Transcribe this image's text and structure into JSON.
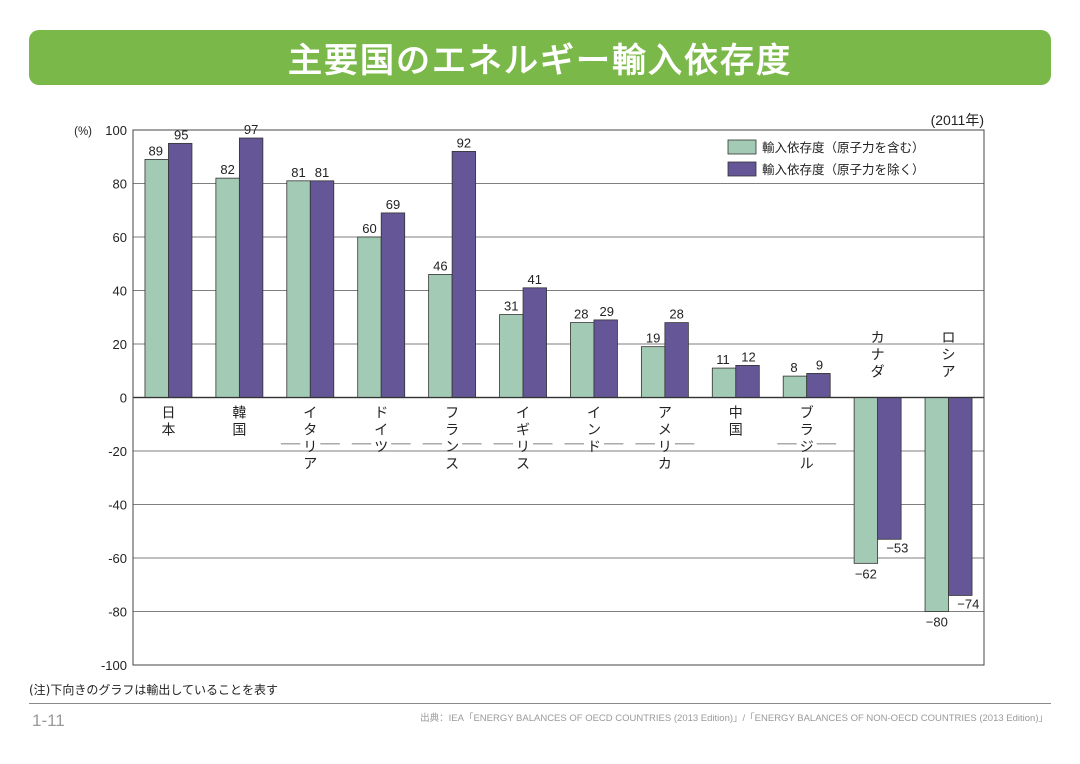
{
  "title": "主要国のエネルギー輸入依存度",
  "year_label": "(2011年)",
  "note": "(注)下向きのグラフは輸出していることを表す",
  "page_number": "1-11",
  "source": "出典：IEA「ENERGY BALANCES OF OECD COUNTRIES (2013 Edition)」/「ENERGY BALANCES OF NON-OECD COUNTRIES (2013 Edition)」",
  "chart_data": {
    "type": "bar",
    "unit_label": "(%)",
    "ylim": [
      -100,
      100
    ],
    "yticks": [
      100,
      80,
      60,
      40,
      20,
      0,
      -20,
      -40,
      -60,
      -80,
      -100
    ],
    "ytick_labels": [
      "100",
      "80",
      "60",
      "40",
      "20",
      "0",
      "-20",
      "-40",
      "-60",
      "-80",
      "-100"
    ],
    "grid": true,
    "legend_position": "top-right",
    "categories": [
      "日本",
      "韓国",
      "イタリア",
      "ドイツ",
      "フランス",
      "イギリス",
      "インド",
      "アメリカ",
      "中国",
      "ブラジル",
      "カナダ",
      "ロシア"
    ],
    "series": [
      {
        "name": "輸入依存度（原子力を含む）",
        "color": "#a3cab4",
        "values": [
          89,
          82,
          81,
          60,
          46,
          31,
          28,
          19,
          11,
          8,
          -62,
          -80
        ],
        "labels": [
          "89",
          "82",
          "81",
          "60",
          "46",
          "31",
          "28",
          "19",
          "11",
          "8",
          "−62",
          "−80"
        ]
      },
      {
        "name": "輸入依存度（原子力を除く）",
        "color": "#655797",
        "values": [
          95,
          97,
          81,
          69,
          92,
          41,
          29,
          28,
          12,
          9,
          -53,
          -74
        ],
        "labels": [
          "95",
          "97",
          "81",
          "69",
          "92",
          "41",
          "29",
          "28",
          "12",
          "9",
          "−53",
          "−74"
        ]
      }
    ]
  }
}
